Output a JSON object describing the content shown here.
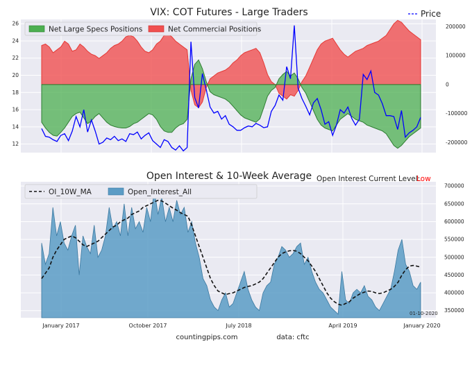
{
  "chart_data": [
    {
      "type": "area",
      "title": "VIX: COT Futures - Large Traders",
      "legend_placement": "top-left",
      "price_legend": "Price",
      "price_color": "#0000ff",
      "left_axis": {
        "ylim": [
          11,
          26.5
        ],
        "ticks": [
          12,
          14,
          16,
          18,
          20,
          22,
          24,
          26
        ]
      },
      "right_axis": {
        "ylim": [
          -235000,
          225000
        ],
        "ticks": [
          200000,
          100000,
          0,
          -100000,
          -200000
        ]
      },
      "grid": true,
      "series": [
        {
          "name": "Net Large Specs Positions",
          "color": "#4caf50",
          "values": [
            -130000,
            -150000,
            -165000,
            -175000,
            -178000,
            -165000,
            -150000,
            -130000,
            -110000,
            -100000,
            -95000,
            -115000,
            -135000,
            -125000,
            -110000,
            -100000,
            -115000,
            -130000,
            -140000,
            -145000,
            -148000,
            -150000,
            -150000,
            -145000,
            -135000,
            -130000,
            -120000,
            -110000,
            -100000,
            -105000,
            -120000,
            -145000,
            -160000,
            -165000,
            -165000,
            -150000,
            -140000,
            -135000,
            -120000,
            20000,
            70000,
            85000,
            55000,
            10000,
            -25000,
            -35000,
            -40000,
            -45000,
            -50000,
            -60000,
            -75000,
            -90000,
            -105000,
            -115000,
            -120000,
            -125000,
            -130000,
            -118000,
            -80000,
            -40000,
            -20000,
            -10000,
            20000,
            35000,
            45000,
            30000,
            40000,
            20000,
            -10000,
            -30000,
            -60000,
            -90000,
            -120000,
            -140000,
            -150000,
            -155000,
            -160000,
            -140000,
            -120000,
            -110000,
            -100000,
            -110000,
            -120000,
            -125000,
            -130000,
            -140000,
            -145000,
            -150000,
            -155000,
            -160000,
            -170000,
            -190000,
            -210000,
            -220000,
            -210000,
            -195000,
            -180000,
            -170000,
            -160000,
            -150000
          ]
        },
        {
          "name": "Net Commercial Positions",
          "color": "#f05050",
          "values": [
            135000,
            140000,
            130000,
            110000,
            120000,
            130000,
            150000,
            140000,
            115000,
            120000,
            140000,
            130000,
            115000,
            105000,
            100000,
            90000,
            100000,
            110000,
            125000,
            135000,
            140000,
            150000,
            165000,
            170000,
            165000,
            150000,
            130000,
            115000,
            110000,
            120000,
            140000,
            150000,
            170000,
            175000,
            165000,
            150000,
            140000,
            130000,
            120000,
            -20000,
            -70000,
            -80000,
            -60000,
            -10000,
            20000,
            30000,
            40000,
            45000,
            50000,
            60000,
            75000,
            85000,
            100000,
            110000,
            115000,
            120000,
            125000,
            110000,
            75000,
            35000,
            10000,
            0,
            -30000,
            -40000,
            -50000,
            -35000,
            -40000,
            -20000,
            10000,
            30000,
            60000,
            90000,
            120000,
            140000,
            150000,
            155000,
            160000,
            140000,
            120000,
            105000,
            95000,
            105000,
            115000,
            120000,
            125000,
            135000,
            140000,
            145000,
            150000,
            160000,
            170000,
            190000,
            210000,
            222000,
            215000,
            200000,
            185000,
            175000,
            165000,
            155000
          ]
        },
        {
          "name": "Price",
          "color": "#0000ff",
          "values": [
            13.8,
            12.9,
            12.8,
            12.5,
            12.3,
            13.0,
            13.2,
            12.4,
            13.5,
            15.2,
            14.0,
            16.0,
            13.4,
            14.8,
            13.5,
            12.0,
            12.2,
            12.7,
            12.5,
            12.9,
            12.4,
            12.6,
            12.3,
            13.2,
            13.1,
            13.4,
            12.6,
            13.0,
            13.3,
            12.4,
            12.0,
            11.6,
            12.5,
            12.3,
            11.6,
            11.3,
            11.8,
            11.2,
            11.6,
            23.9,
            17.4,
            16.2,
            20.2,
            18.3,
            16.3,
            15.6,
            15.8,
            14.9,
            15.3,
            14.3,
            14.0,
            13.6,
            13.6,
            13.9,
            14.1,
            14.0,
            14.4,
            14.2,
            13.9,
            14.0,
            15.8,
            16.5,
            17.7,
            17.1,
            21.0,
            19.6,
            25.8,
            18.5,
            17.3,
            16.4,
            15.4,
            16.8,
            17.3,
            16.0,
            14.3,
            14.6,
            13.0,
            14.2,
            16.0,
            15.6,
            16.3,
            15.0,
            14.2,
            14.9,
            20.1,
            19.5,
            20.5,
            18.0,
            17.7,
            16.7,
            15.3,
            15.3,
            15.2,
            13.7,
            15.9,
            12.8,
            13.3,
            13.6,
            14.0,
            15.1
          ]
        }
      ]
    },
    {
      "type": "area",
      "title": "Open Interest & 10-Week Average",
      "status_label": "Open Interest Current Level:",
      "status_value": "Low",
      "status_color": "#ff0000",
      "date_annotation": "01-10-2020",
      "legend_placement": "top-left",
      "x_ticks": [
        "January 2017",
        "October 2017",
        "July 2018",
        "April 2019",
        "January 2020"
      ],
      "right_axis": {
        "ylim": [
          330000,
          712000
        ],
        "ticks": [
          350000,
          400000,
          450000,
          500000,
          550000,
          600000,
          650000,
          700000
        ]
      },
      "grid": true,
      "series": [
        {
          "name": "Open_Interest_All",
          "color": "#5b9cc5",
          "values": [
            540000,
            480000,
            510000,
            640000,
            560000,
            600000,
            540000,
            520000,
            560000,
            590000,
            450000,
            560000,
            530000,
            510000,
            590000,
            500000,
            520000,
            560000,
            640000,
            580000,
            600000,
            560000,
            650000,
            560000,
            640000,
            580000,
            600000,
            570000,
            640000,
            600000,
            690000,
            620000,
            670000,
            600000,
            640000,
            600000,
            660000,
            620000,
            640000,
            570000,
            600000,
            540000,
            500000,
            440000,
            420000,
            380000,
            360000,
            350000,
            380000,
            400000,
            360000,
            370000,
            400000,
            430000,
            460000,
            410000,
            380000,
            360000,
            350000,
            400000,
            420000,
            430000,
            480000,
            500000,
            530000,
            520000,
            500000,
            510000,
            530000,
            540000,
            480000,
            500000,
            460000,
            430000,
            410000,
            400000,
            380000,
            360000,
            350000,
            340000,
            460000,
            380000,
            370000,
            400000,
            410000,
            400000,
            420000,
            390000,
            380000,
            360000,
            350000,
            370000,
            390000,
            410000,
            460000,
            520000,
            550000,
            480000,
            460000,
            420000,
            410000,
            430000
          ]
        },
        {
          "name": "OI_10W_MA",
          "color": "#111111",
          "values": [
            440000,
            455000,
            470000,
            500000,
            520000,
            535000,
            550000,
            555000,
            560000,
            555000,
            545000,
            535000,
            530000,
            535000,
            540000,
            545000,
            555000,
            565000,
            575000,
            585000,
            590000,
            600000,
            605000,
            610000,
            620000,
            625000,
            630000,
            640000,
            645000,
            650000,
            655000,
            660000,
            658000,
            652000,
            645000,
            638000,
            632000,
            625000,
            620000,
            615000,
            590000,
            560000,
            530000,
            500000,
            470000,
            440000,
            420000,
            405000,
            400000,
            395000,
            398000,
            400000,
            405000,
            410000,
            415000,
            418000,
            420000,
            425000,
            430000,
            440000,
            455000,
            470000,
            485000,
            500000,
            510000,
            515000,
            518000,
            519000,
            517000,
            510000,
            500000,
            490000,
            475000,
            460000,
            440000,
            420000,
            400000,
            385000,
            375000,
            368000,
            365000,
            370000,
            375000,
            385000,
            392000,
            398000,
            402000,
            405000,
            404000,
            400000,
            398000,
            400000,
            405000,
            410000,
            418000,
            430000,
            450000,
            465000,
            475000,
            477000,
            475000,
            472000
          ]
        }
      ]
    }
  ],
  "footer": {
    "source_left": "countingpips.com",
    "source_right": "data: cftc"
  }
}
